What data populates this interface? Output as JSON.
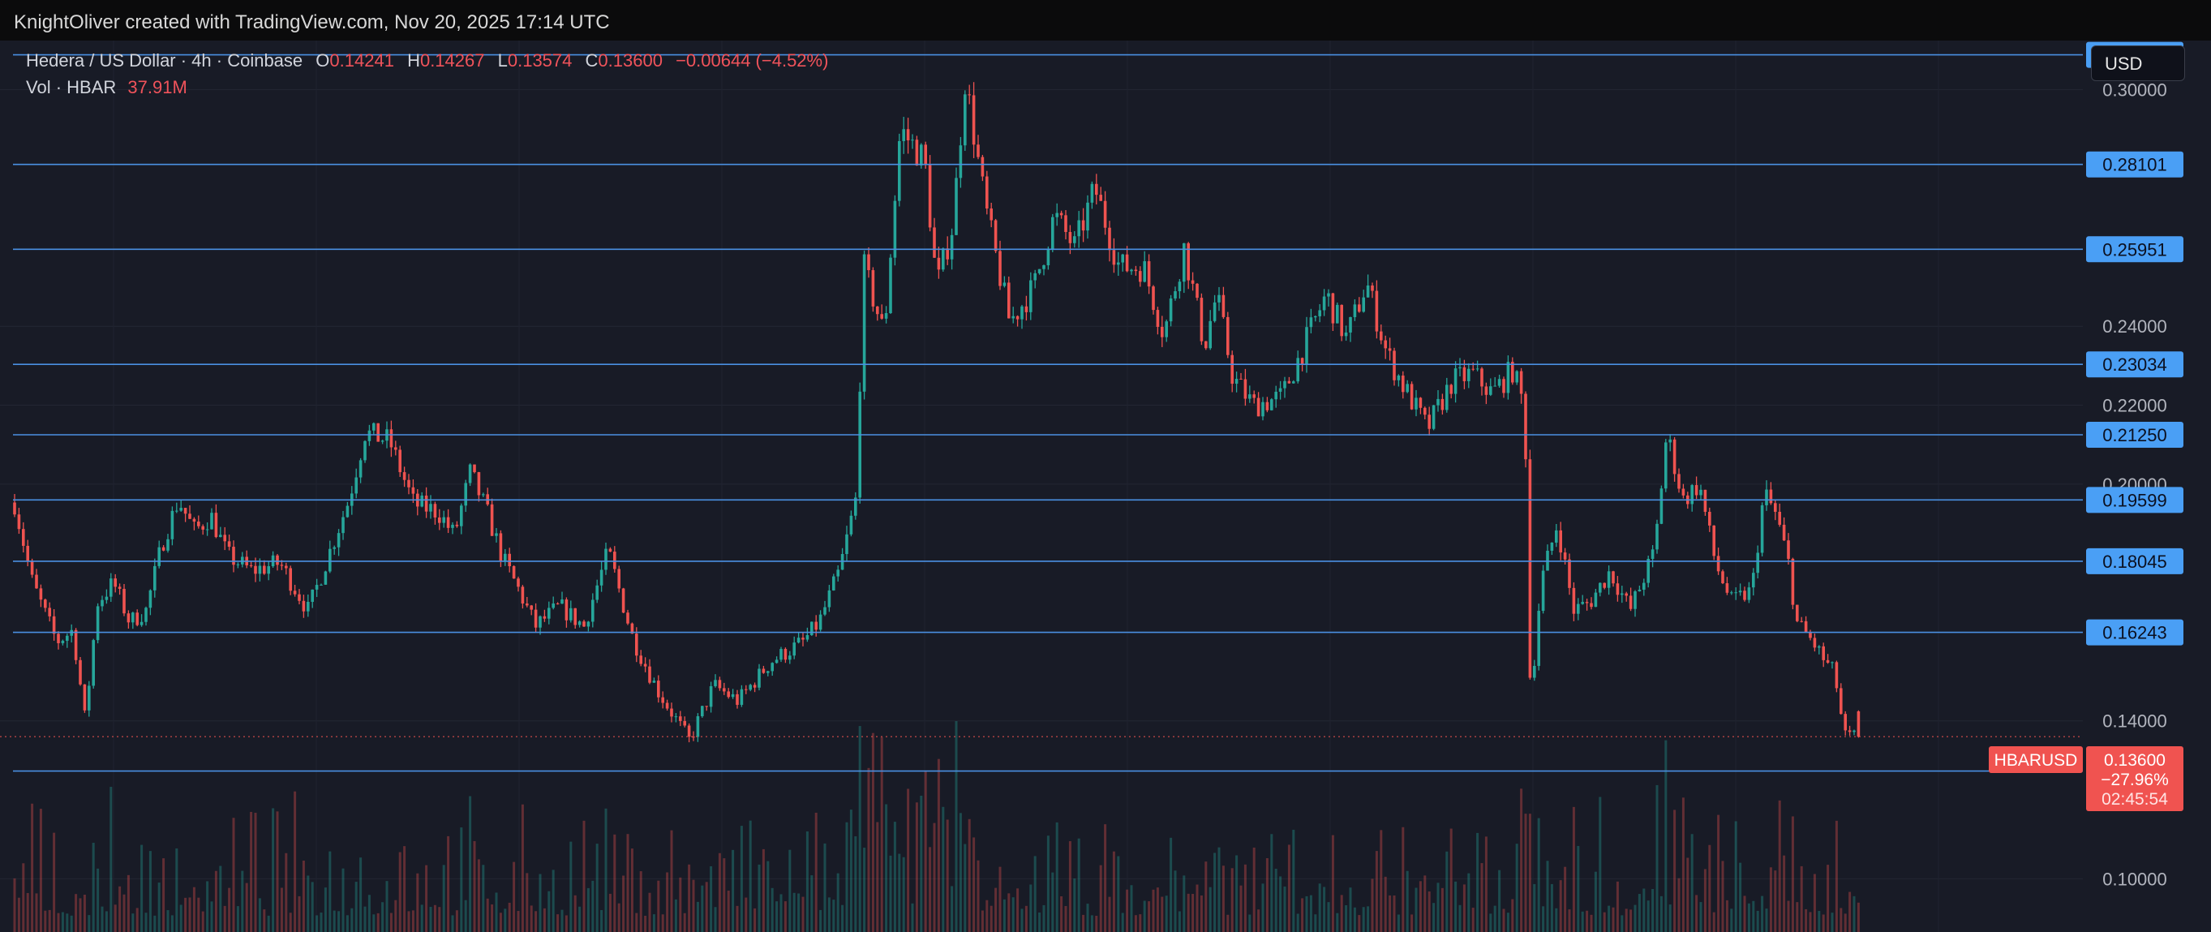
{
  "header": {
    "credit": "KnightOliver created with TradingView.com, Nov 20, 2025 17:14 UTC"
  },
  "legend": {
    "title": "Hedera / US Dollar · 4h · Coinbase",
    "o_label": "O",
    "o_value": "0.14241",
    "h_label": "H",
    "h_value": "0.14267",
    "l_label": "L",
    "l_value": "0.13574",
    "c_label": "C",
    "c_value": "0.13600",
    "change": "−0.00644 (−4.52%)",
    "vol_label": "Vol · HBAR",
    "vol_value": "37.91M"
  },
  "currency_button": {
    "label": "USD"
  },
  "colors": {
    "up": "#26a69a",
    "down": "#ef5350",
    "level_line": "#4a90e2",
    "badge": "#4a9ff5",
    "price_badge": "#f05350"
  },
  "chart_data": {
    "type": "candlestick",
    "symbol": "HBARUSD",
    "interval": "4h",
    "ylim": [
      0.0865,
      0.3124
    ],
    "y_ticks": [
      "0.30000",
      "0.24000",
      "0.22000",
      "0.20000",
      "0.14000",
      "0.10000"
    ],
    "horizontal_levels": [
      "0.30878",
      "0.28101",
      "0.25951",
      "0.23034",
      "0.21250",
      "0.19599",
      "0.18045",
      "0.16243",
      "0.12728"
    ],
    "current_price": {
      "symbol_label": "HBARUSD",
      "price": "0.13600",
      "change_pct": "−27.96%",
      "countdown": "02:45:54"
    },
    "close_anchors": [
      [
        0,
        0.19
      ],
      [
        15,
        0.198
      ],
      [
        40,
        0.175
      ],
      [
        70,
        0.16
      ],
      [
        90,
        0.163
      ],
      [
        105,
        0.14
      ],
      [
        120,
        0.17
      ],
      [
        140,
        0.175
      ],
      [
        160,
        0.165
      ],
      [
        180,
        0.168
      ],
      [
        200,
        0.185
      ],
      [
        220,
        0.196
      ],
      [
        240,
        0.188
      ],
      [
        260,
        0.192
      ],
      [
        280,
        0.182
      ],
      [
        310,
        0.178
      ],
      [
        345,
        0.18
      ],
      [
        380,
        0.168
      ],
      [
        430,
        0.196
      ],
      [
        450,
        0.213
      ],
      [
        480,
        0.211
      ],
      [
        510,
        0.195
      ],
      [
        540,
        0.193
      ],
      [
        560,
        0.187
      ],
      [
        580,
        0.203
      ],
      [
        600,
        0.193
      ],
      [
        620,
        0.181
      ],
      [
        640,
        0.173
      ],
      [
        660,
        0.164
      ],
      [
        690,
        0.169
      ],
      [
        720,
        0.164
      ],
      [
        750,
        0.183
      ],
      [
        780,
        0.161
      ],
      [
        810,
        0.148
      ],
      [
        850,
        0.135
      ],
      [
        880,
        0.149
      ],
      [
        910,
        0.145
      ],
      [
        950,
        0.155
      ],
      [
        990,
        0.16
      ],
      [
        1010,
        0.165
      ],
      [
        1035,
        0.178
      ],
      [
        1055,
        0.196
      ],
      [
        1065,
        0.255
      ],
      [
        1090,
        0.238
      ],
      [
        1110,
        0.29
      ],
      [
        1140,
        0.282
      ],
      [
        1155,
        0.25
      ],
      [
        1175,
        0.266
      ],
      [
        1190,
        0.303
      ],
      [
        1215,
        0.27
      ],
      [
        1245,
        0.241
      ],
      [
        1275,
        0.25
      ],
      [
        1300,
        0.268
      ],
      [
        1325,
        0.26
      ],
      [
        1350,
        0.275
      ],
      [
        1380,
        0.255
      ],
      [
        1410,
        0.255
      ],
      [
        1435,
        0.238
      ],
      [
        1460,
        0.26
      ],
      [
        1485,
        0.235
      ],
      [
        1500,
        0.248
      ],
      [
        1520,
        0.227
      ],
      [
        1545,
        0.22
      ],
      [
        1580,
        0.222
      ],
      [
        1610,
        0.236
      ],
      [
        1635,
        0.248
      ],
      [
        1660,
        0.237
      ],
      [
        1685,
        0.251
      ],
      [
        1710,
        0.233
      ],
      [
        1730,
        0.225
      ],
      [
        1760,
        0.214
      ],
      [
        1790,
        0.226
      ],
      [
        1815,
        0.228
      ],
      [
        1840,
        0.223
      ],
      [
        1865,
        0.229
      ],
      [
        1880,
        0.219
      ],
      [
        1887,
        0.145
      ],
      [
        1900,
        0.175
      ],
      [
        1920,
        0.19
      ],
      [
        1940,
        0.168
      ],
      [
        1960,
        0.17
      ],
      [
        1985,
        0.178
      ],
      [
        2010,
        0.168
      ],
      [
        2040,
        0.183
      ],
      [
        2055,
        0.213
      ],
      [
        2075,
        0.196
      ],
      [
        2095,
        0.2
      ],
      [
        2115,
        0.18
      ],
      [
        2135,
        0.17
      ],
      [
        2160,
        0.173
      ],
      [
        2175,
        0.198
      ],
      [
        2190,
        0.192
      ],
      [
        2205,
        0.18
      ],
      [
        2215,
        0.165
      ],
      [
        2235,
        0.16
      ],
      [
        2250,
        0.155
      ],
      [
        2262,
        0.152
      ],
      [
        2274,
        0.136
      ]
    ]
  }
}
